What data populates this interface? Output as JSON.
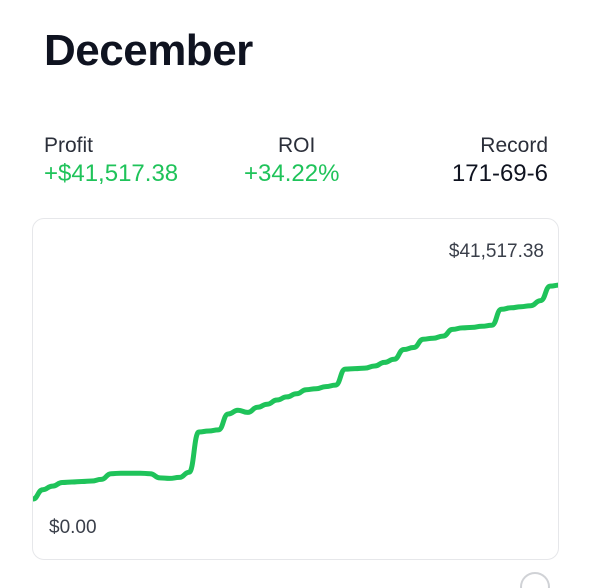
{
  "header": {
    "title": "December"
  },
  "stats": {
    "profit": {
      "label": "Profit",
      "value": "+$41,517.38"
    },
    "roi": {
      "label": "ROI",
      "value": "+34.22%"
    },
    "record": {
      "label": "Record",
      "value": "171-69-6"
    }
  },
  "chart": {
    "max_label": "$41,517.38",
    "min_label": "$0.00"
  },
  "colors": {
    "accent": "#1fc35a",
    "text": "#0f1320"
  },
  "chart_data": {
    "type": "line",
    "title": "",
    "xlabel": "",
    "ylabel": "",
    "ylim": [
      0,
      41517.38
    ],
    "grid": false,
    "series": [
      {
        "values": [
          0,
          1800,
          2500,
          3200,
          3300,
          3400,
          3500,
          3800,
          4900,
          5000,
          5000,
          5000,
          4900,
          4100,
          4000,
          4200,
          5200,
          13000,
          13200,
          13400,
          16500,
          17200,
          16800,
          17800,
          18400,
          19200,
          19800,
          20400,
          21200,
          21400,
          21800,
          22100,
          25200,
          25300,
          25400,
          25800,
          26500,
          27100,
          29000,
          29400,
          31000,
          31200,
          31600,
          32900,
          33200,
          33300,
          33500,
          33700,
          36800,
          37100,
          37300,
          37500,
          38500,
          41300,
          41517.38
        ]
      }
    ]
  }
}
